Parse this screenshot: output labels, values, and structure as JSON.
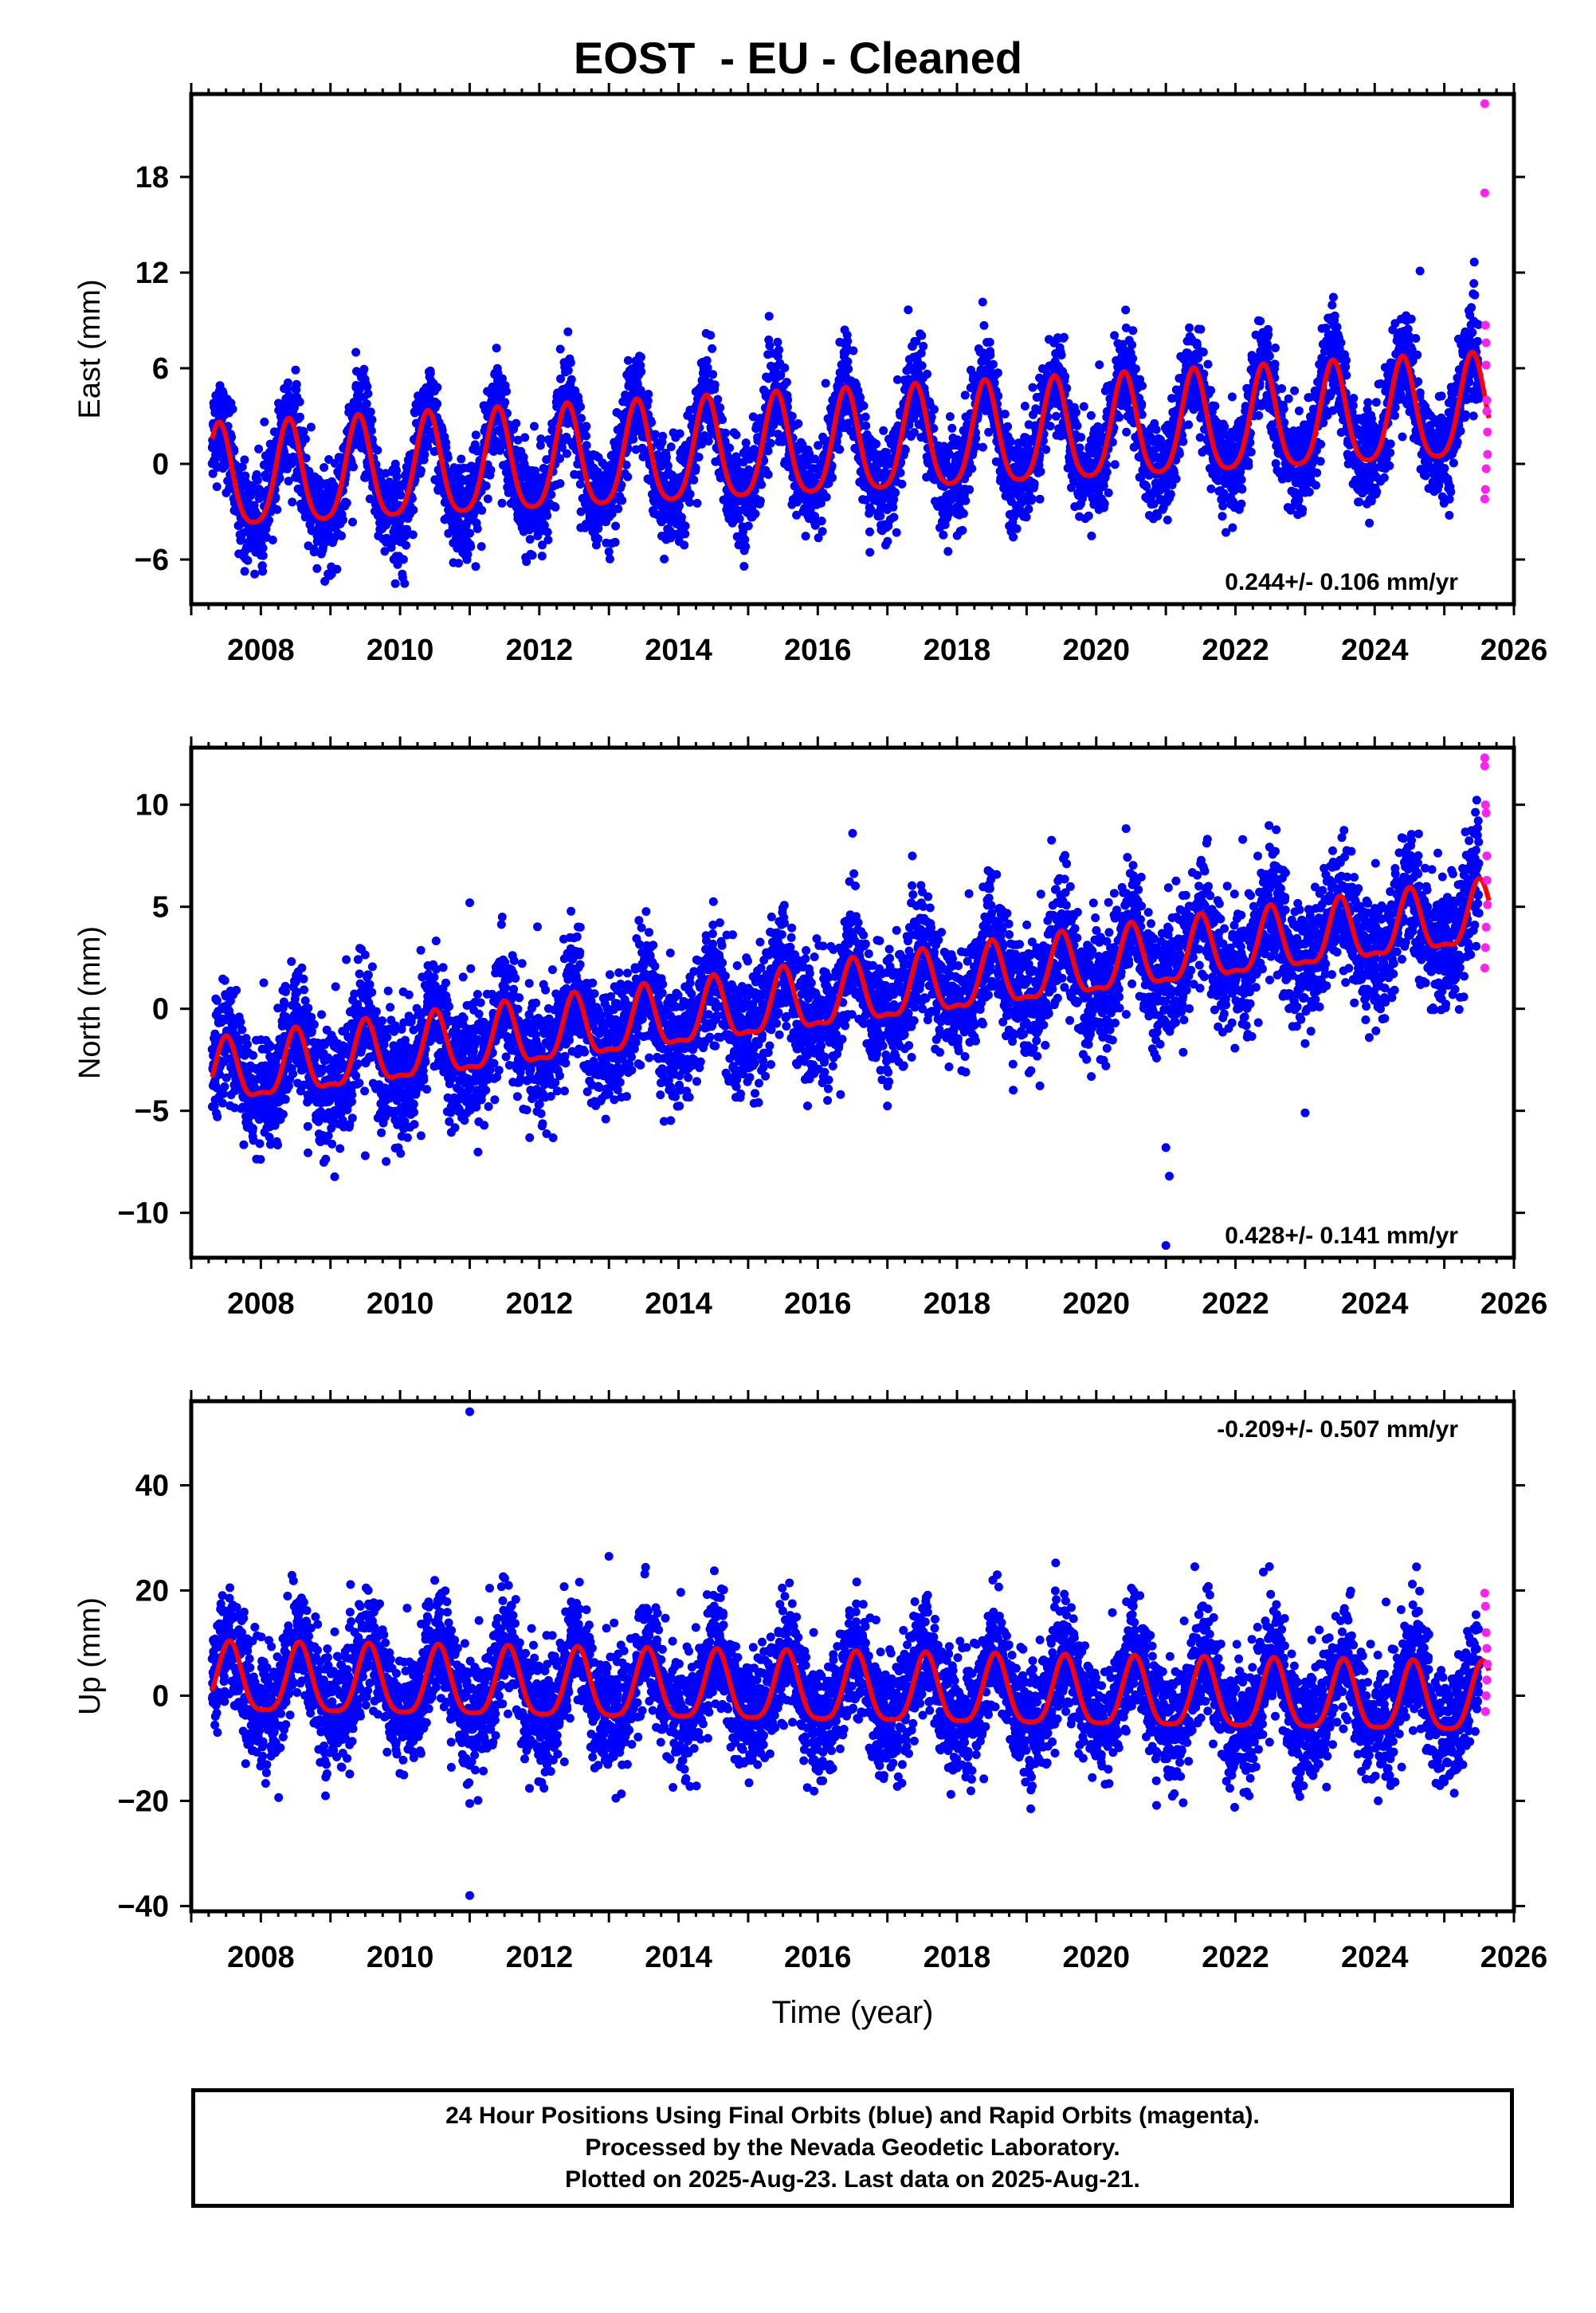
{
  "title": "EOST  - EU - Cleaned",
  "footer": {
    "line1": "24 Hour Positions Using Final Orbits (blue) and Rapid Orbits (magenta).",
    "line2": "Processed by the Nevada Geodetic Laboratory.",
    "line3": "Plotted on 2025-Aug-23. Last data on 2025-Aug-21."
  },
  "colors": {
    "final_orbits": "#0000ff",
    "rapid_orbits": "#ff22ee",
    "model": "#ff0000",
    "axes": "#000000"
  },
  "chart_data": [
    {
      "type": "scatter",
      "component": "East",
      "ylabel": "East (mm)",
      "xlabel": "",
      "xlim": [
        2007.0,
        2026.0
      ],
      "ylim": [
        -8.8,
        23.2
      ],
      "xticks": [
        2008,
        2010,
        2012,
        2014,
        2016,
        2018,
        2020,
        2022,
        2024,
        2026
      ],
      "yticks": [
        -6,
        0,
        6,
        12,
        18
      ],
      "rate_label": "0.244+/- 0.106 mm/yr",
      "rate_position": "bottom-right",
      "start_year": 2007.3,
      "end_final": 2025.5,
      "end_year": 2025.64,
      "model": {
        "offset": -1.2,
        "rate": 0.244,
        "annual_amp": 3.2,
        "semiannual_amp": 0.6,
        "annual_peak": 0.4
      },
      "scatter_sd": 1.5,
      "outliers": [
        [
          2024.65,
          12.1
        ],
        [
          2024.45,
          9.3
        ]
      ],
      "rapid_points": [
        [
          2025.58,
          22.6
        ],
        [
          2025.58,
          17.0
        ],
        [
          2025.59,
          8.7
        ],
        [
          2025.6,
          7.6
        ],
        [
          2025.6,
          6.2
        ],
        [
          2025.61,
          4.0
        ],
        [
          2025.61,
          3.3
        ],
        [
          2025.62,
          2.0
        ],
        [
          2025.62,
          0.6
        ],
        [
          2025.6,
          -0.3
        ],
        [
          2025.59,
          -1.6
        ],
        [
          2025.58,
          -2.2
        ]
      ]
    },
    {
      "type": "scatter",
      "component": "North",
      "ylabel": "North (mm)",
      "xlabel": "",
      "xlim": [
        2007.0,
        2026.0
      ],
      "ylim": [
        -12.2,
        12.8
      ],
      "xticks": [
        2008,
        2010,
        2012,
        2014,
        2016,
        2018,
        2020,
        2022,
        2024,
        2026
      ],
      "yticks": [
        -10,
        -5,
        0,
        5,
        10
      ],
      "rate_label": "0.428+/- 0.141 mm/yr",
      "rate_position": "bottom-right",
      "start_year": 2007.3,
      "end_final": 2025.5,
      "end_year": 2025.64,
      "model": {
        "offset": -3.4,
        "rate": 0.428,
        "annual_amp": 1.5,
        "semiannual_amp": 0.5,
        "annual_peak": 0.5
      },
      "scatter_sd": 1.5,
      "outliers": [
        [
          2016.5,
          8.6
        ],
        [
          2021.0,
          -6.8
        ],
        [
          2021.05,
          -8.2
        ],
        [
          2021.0,
          -11.6
        ],
        [
          2023.0,
          -5.1
        ],
        [
          2023.0,
          -1.7
        ],
        [
          2011.0,
          5.2
        ],
        [
          2009.5,
          -7.2
        ]
      ],
      "rapid_points": [
        [
          2025.58,
          12.3
        ],
        [
          2025.58,
          11.9
        ],
        [
          2025.59,
          10.0
        ],
        [
          2025.6,
          9.6
        ],
        [
          2025.61,
          7.5
        ],
        [
          2025.61,
          6.3
        ],
        [
          2025.62,
          5.1
        ],
        [
          2025.6,
          4.0
        ],
        [
          2025.59,
          3.0
        ],
        [
          2025.58,
          2.0
        ]
      ]
    },
    {
      "type": "scatter",
      "component": "Up",
      "ylabel": "Up (mm)",
      "xlabel": "Time (year)",
      "xlim": [
        2007.0,
        2026.0
      ],
      "ylim": [
        -41.0,
        56.0
      ],
      "xticks": [
        2008,
        2010,
        2012,
        2014,
        2016,
        2018,
        2020,
        2022,
        2024,
        2026
      ],
      "yticks": [
        -40,
        -20,
        0,
        20,
        40
      ],
      "rate_label": "-0.209+/- 0.507 mm/yr",
      "rate_position": "top-right",
      "start_year": 2007.3,
      "end_final": 2025.5,
      "end_year": 2025.64,
      "model": {
        "offset": 2.5,
        "rate": -0.209,
        "annual_amp": 6.5,
        "semiannual_amp": 1.5,
        "annual_peak": 0.55
      },
      "scatter_sd": 5.5,
      "outliers": [
        [
          2011.0,
          54.0
        ],
        [
          2011.0,
          -38.0
        ],
        [
          2013.0,
          26.5
        ],
        [
          2024.6,
          24.5
        ],
        [
          2011.0,
          -20.5
        ],
        [
          2013.1,
          -19.5
        ],
        [
          2022.4,
          23.5
        ]
      ],
      "rapid_points": [
        [
          2025.58,
          19.5
        ],
        [
          2025.59,
          17.0
        ],
        [
          2025.6,
          12.0
        ],
        [
          2025.61,
          9.0
        ],
        [
          2025.62,
          6.0
        ],
        [
          2025.61,
          3.0
        ],
        [
          2025.6,
          0.0
        ],
        [
          2025.59,
          -3.0
        ]
      ]
    }
  ]
}
